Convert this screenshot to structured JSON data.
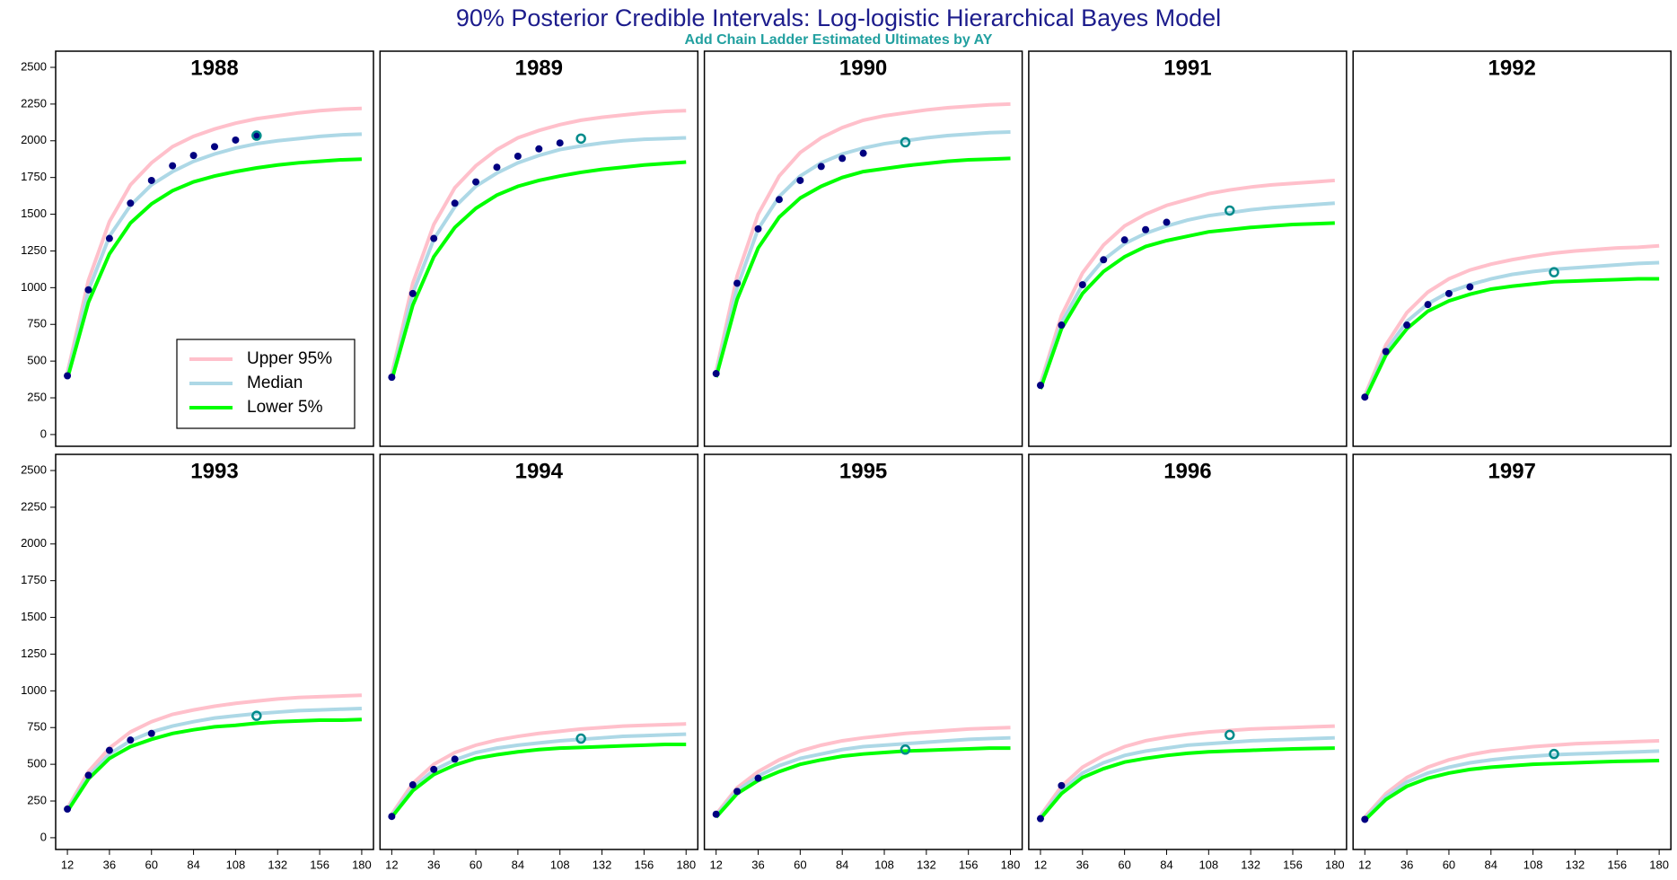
{
  "title": "90% Posterior Credible Intervals:  Log-logistic Hierarchical Bayes Model",
  "subtitle": "Add Chain Ladder Estimated Ultimates by AY",
  "chart_data": [
    {
      "type": "line",
      "title": "1988",
      "legend": "lower right",
      "x": [
        12,
        24,
        36,
        48,
        60,
        72,
        84,
        96,
        108,
        120,
        132,
        144,
        156,
        168,
        180
      ],
      "xlim": [
        5.3,
        186.7
      ],
      "ylim": [
        -80,
        2610
      ],
      "yticks": [
        0,
        250,
        500,
        750,
        1000,
        1250,
        1500,
        1750,
        2000,
        2250,
        2500
      ],
      "series": [
        {
          "name": "Upper 95%",
          "color": "#ffc0cb",
          "values": [
            420,
            1050,
            1450,
            1700,
            1850,
            1960,
            2030,
            2080,
            2120,
            2150,
            2170,
            2190,
            2205,
            2215,
            2220
          ]
        },
        {
          "name": "Median",
          "color": "#add8e6",
          "values": [
            400,
            980,
            1350,
            1560,
            1700,
            1790,
            1860,
            1910,
            1950,
            1980,
            2000,
            2015,
            2030,
            2040,
            2045
          ]
        },
        {
          "name": "Lower 5%",
          "color": "#00ff00",
          "values": [
            380,
            900,
            1230,
            1440,
            1570,
            1660,
            1720,
            1760,
            1790,
            1815,
            1835,
            1850,
            1860,
            1870,
            1875
          ]
        }
      ],
      "points": {
        "color": "#000080",
        "x": [
          12,
          24,
          36,
          48,
          60,
          72,
          84,
          96,
          108,
          120
        ],
        "values": [
          400,
          985,
          1335,
          1575,
          1730,
          1830,
          1900,
          1960,
          2005,
          2035
        ]
      },
      "ultimate": {
        "color": "#008b8b",
        "x": 120,
        "value": 2035
      }
    },
    {
      "type": "line",
      "title": "1989",
      "x": [
        12,
        24,
        36,
        48,
        60,
        72,
        84,
        96,
        108,
        120,
        132,
        144,
        156,
        168,
        180
      ],
      "xlim": [
        5.3,
        186.7
      ],
      "ylim": [
        -80,
        2610
      ],
      "series": [
        {
          "color": "#ffc0cb",
          "values": [
            410,
            1030,
            1430,
            1680,
            1830,
            1940,
            2020,
            2070,
            2110,
            2140,
            2160,
            2175,
            2190,
            2200,
            2205
          ]
        },
        {
          "color": "#add8e6",
          "values": [
            390,
            960,
            1330,
            1550,
            1690,
            1780,
            1850,
            1900,
            1940,
            1965,
            1985,
            2000,
            2010,
            2015,
            2020
          ]
        },
        {
          "color": "#00ff00",
          "values": [
            370,
            880,
            1210,
            1410,
            1540,
            1630,
            1690,
            1730,
            1760,
            1785,
            1805,
            1820,
            1835,
            1845,
            1855
          ]
        }
      ],
      "points": {
        "color": "#000080",
        "x": [
          12,
          24,
          36,
          48,
          60,
          72,
          84,
          96,
          108
        ],
        "values": [
          390,
          960,
          1335,
          1575,
          1720,
          1820,
          1895,
          1945,
          1985
        ]
      },
      "ultimate": {
        "color": "#008b8b",
        "x": 120,
        "value": 2015
      }
    },
    {
      "type": "line",
      "title": "1990",
      "x": [
        12,
        24,
        36,
        48,
        60,
        72,
        84,
        96,
        108,
        120,
        132,
        144,
        156,
        168,
        180
      ],
      "xlim": [
        5.3,
        186.7
      ],
      "ylim": [
        -80,
        2610
      ],
      "series": [
        {
          "color": "#ffc0cb",
          "values": [
            430,
            1080,
            1500,
            1760,
            1920,
            2020,
            2090,
            2140,
            2170,
            2190,
            2210,
            2225,
            2235,
            2245,
            2250
          ]
        },
        {
          "color": "#add8e6",
          "values": [
            410,
            1000,
            1400,
            1620,
            1760,
            1850,
            1910,
            1950,
            1980,
            2000,
            2020,
            2035,
            2045,
            2055,
            2060
          ]
        },
        {
          "color": "#00ff00",
          "values": [
            390,
            920,
            1270,
            1480,
            1610,
            1690,
            1750,
            1790,
            1810,
            1830,
            1845,
            1860,
            1870,
            1875,
            1880
          ]
        }
      ],
      "points": {
        "color": "#000080",
        "x": [
          12,
          24,
          36,
          48,
          60,
          72,
          84,
          96
        ],
        "values": [
          415,
          1030,
          1400,
          1600,
          1730,
          1825,
          1880,
          1915
        ]
      },
      "ultimate": {
        "color": "#008b8b",
        "x": 120,
        "value": 1990
      }
    },
    {
      "type": "line",
      "title": "1991",
      "x": [
        12,
        24,
        36,
        48,
        60,
        72,
        84,
        96,
        108,
        120,
        132,
        144,
        156,
        168,
        180
      ],
      "xlim": [
        5.3,
        186.7
      ],
      "ylim": [
        -80,
        2610
      ],
      "series": [
        {
          "color": "#ffc0cb",
          "values": [
            345,
            810,
            1100,
            1290,
            1420,
            1500,
            1560,
            1600,
            1640,
            1665,
            1685,
            1700,
            1710,
            1720,
            1730
          ]
        },
        {
          "color": "#add8e6",
          "values": [
            330,
            760,
            1020,
            1190,
            1300,
            1370,
            1420,
            1460,
            1490,
            1510,
            1530,
            1545,
            1555,
            1565,
            1575
          ]
        },
        {
          "color": "#00ff00",
          "values": [
            310,
            720,
            960,
            1110,
            1210,
            1280,
            1320,
            1350,
            1380,
            1395,
            1410,
            1420,
            1430,
            1435,
            1440
          ]
        }
      ],
      "points": {
        "color": "#000080",
        "x": [
          12,
          24,
          36,
          48,
          60,
          72,
          84
        ],
        "values": [
          335,
          745,
          1020,
          1190,
          1325,
          1395,
          1445
        ]
      },
      "ultimate": {
        "color": "#008b8b",
        "x": 120,
        "value": 1525
      }
    },
    {
      "type": "line",
      "title": "1992",
      "x": [
        12,
        24,
        36,
        48,
        60,
        72,
        84,
        96,
        108,
        120,
        132,
        144,
        156,
        168,
        180
      ],
      "xlim": [
        5.3,
        186.7
      ],
      "ylim": [
        -80,
        2610
      ],
      "series": [
        {
          "color": "#ffc0cb",
          "values": [
            265,
            610,
            830,
            970,
            1060,
            1120,
            1160,
            1190,
            1215,
            1235,
            1250,
            1260,
            1270,
            1275,
            1285
          ]
        },
        {
          "color": "#add8e6",
          "values": [
            250,
            570,
            770,
            890,
            970,
            1020,
            1060,
            1090,
            1110,
            1125,
            1135,
            1145,
            1155,
            1165,
            1170
          ]
        },
        {
          "color": "#00ff00",
          "values": [
            240,
            540,
            720,
            840,
            910,
            955,
            990,
            1010,
            1025,
            1040,
            1045,
            1050,
            1055,
            1060,
            1060
          ]
        }
      ],
      "points": {
        "color": "#000080",
        "x": [
          12,
          24,
          36,
          48,
          60,
          72
        ],
        "values": [
          255,
          565,
          745,
          885,
          960,
          1005
        ]
      },
      "ultimate": {
        "color": "#008b8b",
        "x": 120,
        "value": 1105
      }
    },
    {
      "type": "line",
      "title": "1993",
      "x": [
        12,
        24,
        36,
        48,
        60,
        72,
        84,
        96,
        108,
        120,
        132,
        144,
        156,
        168,
        180
      ],
      "xlim": [
        5.3,
        186.7
      ],
      "ylim": [
        -80,
        2610
      ],
      "yticks": [
        0,
        250,
        500,
        750,
        1000,
        1250,
        1500,
        1750,
        2000,
        2250,
        2500
      ],
      "xticks": [
        12,
        36,
        60,
        84,
        108,
        132,
        156,
        180
      ],
      "series": [
        {
          "color": "#ffc0cb",
          "values": [
            200,
            450,
            610,
            720,
            790,
            840,
            870,
            895,
            915,
            930,
            945,
            955,
            960,
            965,
            970
          ]
        },
        {
          "color": "#add8e6",
          "values": [
            190,
            420,
            570,
            660,
            720,
            760,
            790,
            815,
            830,
            845,
            855,
            865,
            870,
            875,
            880
          ]
        },
        {
          "color": "#00ff00",
          "values": [
            180,
            400,
            540,
            620,
            670,
            710,
            735,
            755,
            765,
            780,
            790,
            795,
            800,
            800,
            805
          ]
        }
      ],
      "points": {
        "color": "#000080",
        "x": [
          12,
          24,
          36,
          48,
          60
        ],
        "values": [
          195,
          425,
          595,
          665,
          710
        ]
      },
      "ultimate": {
        "color": "#008b8b",
        "x": 120,
        "value": 830
      }
    },
    {
      "type": "line",
      "title": "1994",
      "x": [
        12,
        24,
        36,
        48,
        60,
        72,
        84,
        96,
        108,
        120,
        132,
        144,
        156,
        168,
        180
      ],
      "xlim": [
        5.3,
        186.7
      ],
      "ylim": [
        -80,
        2610
      ],
      "xticks": [
        12,
        36,
        60,
        84,
        108,
        132,
        156,
        180
      ],
      "series": [
        {
          "color": "#ffc0cb",
          "values": [
            160,
            370,
            500,
            580,
            630,
            665,
            690,
            710,
            725,
            740,
            750,
            760,
            765,
            770,
            775
          ]
        },
        {
          "color": "#add8e6",
          "values": [
            150,
            340,
            460,
            530,
            580,
            610,
            630,
            645,
            660,
            670,
            680,
            690,
            695,
            700,
            705
          ]
        },
        {
          "color": "#00ff00",
          "values": [
            140,
            320,
            430,
            495,
            540,
            565,
            585,
            600,
            610,
            615,
            620,
            625,
            630,
            635,
            635
          ]
        }
      ],
      "points": {
        "color": "#000080",
        "x": [
          12,
          24,
          36,
          48
        ],
        "values": [
          145,
          360,
          465,
          535
        ]
      },
      "ultimate": {
        "color": "#008b8b",
        "x": 120,
        "value": 675
      }
    },
    {
      "type": "line",
      "title": "1995",
      "x": [
        12,
        24,
        36,
        48,
        60,
        72,
        84,
        96,
        108,
        120,
        132,
        144,
        156,
        168,
        180
      ],
      "xlim": [
        5.3,
        186.7
      ],
      "ylim": [
        -80,
        2610
      ],
      "xticks": [
        12,
        36,
        60,
        84,
        108,
        132,
        156,
        180
      ],
      "series": [
        {
          "color": "#ffc0cb",
          "values": [
            160,
            340,
            450,
            530,
            590,
            630,
            660,
            680,
            695,
            710,
            720,
            730,
            740,
            745,
            750
          ]
        },
        {
          "color": "#add8e6",
          "values": [
            150,
            320,
            420,
            490,
            540,
            570,
            600,
            620,
            630,
            640,
            650,
            660,
            670,
            675,
            680
          ]
        },
        {
          "color": "#00ff00",
          "values": [
            140,
            300,
            390,
            450,
            500,
            530,
            555,
            570,
            580,
            590,
            595,
            600,
            605,
            610,
            610
          ]
        }
      ],
      "points": {
        "color": "#000080",
        "x": [
          12,
          24,
          36
        ],
        "values": [
          160,
          315,
          405
        ]
      },
      "ultimate": {
        "color": "#008b8b",
        "x": 120,
        "value": 600
      }
    },
    {
      "type": "line",
      "title": "1996",
      "x": [
        12,
        24,
        36,
        48,
        60,
        72,
        84,
        96,
        108,
        120,
        132,
        144,
        156,
        168,
        180
      ],
      "xlim": [
        5.3,
        186.7
      ],
      "ylim": [
        -80,
        2610
      ],
      "xticks": [
        12,
        36,
        60,
        84,
        108,
        132,
        156,
        180
      ],
      "series": [
        {
          "color": "#ffc0cb",
          "values": [
            150,
            350,
            480,
            560,
            620,
            660,
            685,
            705,
            720,
            730,
            740,
            745,
            750,
            755,
            760
          ]
        },
        {
          "color": "#add8e6",
          "values": [
            140,
            320,
            440,
            510,
            560,
            590,
            610,
            630,
            640,
            650,
            660,
            665,
            670,
            675,
            680
          ]
        },
        {
          "color": "#00ff00",
          "values": [
            130,
            300,
            410,
            470,
            515,
            540,
            560,
            575,
            585,
            590,
            595,
            600,
            605,
            608,
            610
          ]
        }
      ],
      "points": {
        "color": "#000080",
        "x": [
          12,
          24
        ],
        "values": [
          130,
          355
        ]
      },
      "ultimate": {
        "color": "#008b8b",
        "x": 120,
        "value": 700
      }
    },
    {
      "type": "line",
      "title": "1997",
      "x": [
        12,
        24,
        36,
        48,
        60,
        72,
        84,
        96,
        108,
        120,
        132,
        144,
        156,
        168,
        180
      ],
      "xlim": [
        5.3,
        186.7
      ],
      "ylim": [
        -80,
        2610
      ],
      "xticks": [
        12,
        36,
        60,
        84,
        108,
        132,
        156,
        180
      ],
      "series": [
        {
          "color": "#ffc0cb",
          "values": [
            140,
            300,
            410,
            480,
            530,
            565,
            590,
            605,
            620,
            630,
            640,
            645,
            650,
            655,
            660
          ]
        },
        {
          "color": "#add8e6",
          "values": [
            130,
            280,
            380,
            440,
            480,
            510,
            530,
            545,
            555,
            565,
            570,
            575,
            580,
            585,
            590
          ]
        },
        {
          "color": "#00ff00",
          "values": [
            120,
            260,
            350,
            405,
            440,
            465,
            480,
            490,
            500,
            505,
            510,
            515,
            520,
            522,
            525
          ]
        }
      ],
      "points": {
        "color": "#000080",
        "x": [
          12
        ],
        "values": [
          125
        ]
      },
      "ultimate": {
        "color": "#008b8b",
        "x": 120,
        "value": 570
      }
    }
  ]
}
